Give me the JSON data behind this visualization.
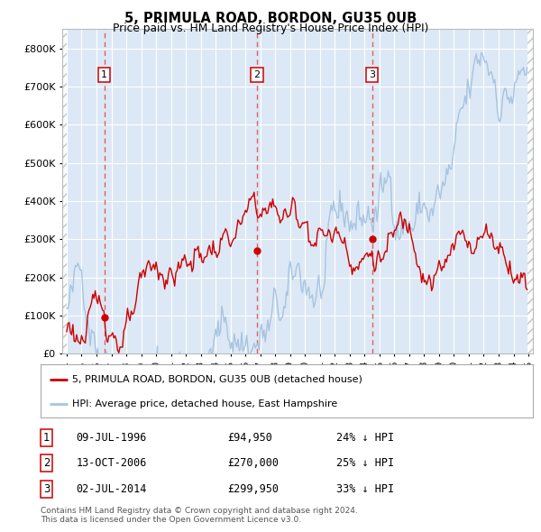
{
  "title": "5, PRIMULA ROAD, BORDON, GU35 0UB",
  "subtitle": "Price paid vs. HM Land Registry's House Price Index (HPI)",
  "ylim": [
    0,
    850000
  ],
  "yticks": [
    0,
    100000,
    200000,
    300000,
    400000,
    500000,
    600000,
    700000,
    800000
  ],
  "ytick_labels": [
    "£0",
    "£100K",
    "£200K",
    "£300K",
    "£400K",
    "£500K",
    "£600K",
    "£700K",
    "£800K"
  ],
  "xlim_start": 1993.7,
  "xlim_end": 2025.3,
  "xticks": [
    1994,
    1995,
    1996,
    1997,
    1998,
    1999,
    2000,
    2001,
    2002,
    2003,
    2004,
    2005,
    2006,
    2007,
    2008,
    2009,
    2010,
    2011,
    2012,
    2013,
    2014,
    2015,
    2016,
    2017,
    2018,
    2019,
    2020,
    2021,
    2022,
    2023,
    2024,
    2025
  ],
  "hpi_color": "#a8c4e0",
  "price_color": "#cc0000",
  "dashed_line_color": "#e06060",
  "bg_color": "#dce8f5",
  "sale_dates": [
    1996.52,
    2006.78,
    2014.5
  ],
  "sale_prices": [
    94950,
    270000,
    299950
  ],
  "sale_labels": [
    "1",
    "2",
    "3"
  ],
  "sale_date_strs": [
    "09-JUL-1996",
    "13-OCT-2006",
    "02-JUL-2014"
  ],
  "sale_price_strs": [
    "£94,950",
    "£270,000",
    "£299,950"
  ],
  "sale_hpi_strs": [
    "24% ↓ HPI",
    "25% ↓ HPI",
    "33% ↓ HPI"
  ],
  "legend_line1": "5, PRIMULA ROAD, BORDON, GU35 0UB (detached house)",
  "legend_line2": "HPI: Average price, detached house, East Hampshire",
  "footer1": "Contains HM Land Registry data © Crown copyright and database right 2024.",
  "footer2": "This data is licensed under the Open Government Licence v3.0."
}
